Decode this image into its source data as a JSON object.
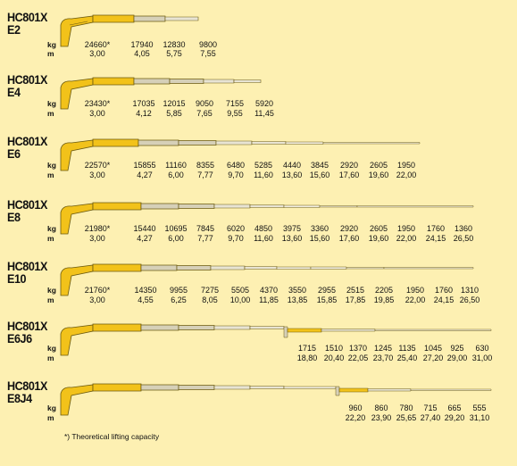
{
  "footnote": "*) Theoretical lifting capacity",
  "unit_kg": "kg",
  "unit_m": "m",
  "colors": {
    "boom": "#f2c21a",
    "boom_stroke": "#6b5a10",
    "extension": "#c9c4b0",
    "background": "#fdf0b2"
  },
  "configs": [
    {
      "line1": "HC801X",
      "line2": "E2",
      "kg": [
        "24660*",
        "17940",
        "12830",
        "9800"
      ],
      "m": [
        "3,00",
        "4,05",
        "5,75",
        "7,55"
      ]
    },
    {
      "line1": "HC801X",
      "line2": "E4",
      "kg": [
        "23430*",
        "17035",
        "12015",
        "9050",
        "7155",
        "5920"
      ],
      "m": [
        "3,00",
        "4,12",
        "5,85",
        "7,65",
        "9,55",
        "11,45"
      ]
    },
    {
      "line1": "HC801X",
      "line2": "E6",
      "kg": [
        "22570*",
        "15855",
        "11160",
        "8355",
        "6480",
        "5285",
        "4440",
        "3845",
        "2920",
        "2605",
        "1950"
      ],
      "m": [
        "3,00",
        "4,27",
        "6,00",
        "7,77",
        "9,70",
        "11,60",
        "13,60",
        "15,60",
        "17,60",
        "19,60",
        "22,00"
      ]
    },
    {
      "line1": "HC801X",
      "line2": "E8",
      "kg": [
        "21980*",
        "15440",
        "10695",
        "7845",
        "6020",
        "4850",
        "3975",
        "3360",
        "2920",
        "2605",
        "1950",
        "1760",
        "1360"
      ],
      "m": [
        "3,00",
        "4,27",
        "6,00",
        "7,77",
        "9,70",
        "11,60",
        "13,60",
        "15,60",
        "17,60",
        "19,60",
        "22,00",
        "24,15",
        "26,50"
      ]
    },
    {
      "line1": "HC801X",
      "line2": "E10",
      "kg": [
        "21760*",
        "14350",
        "9955",
        "7275",
        "5505",
        "4370",
        "3550",
        "2955",
        "2515",
        "2205",
        "1950",
        "1760",
        "1310"
      ],
      "m": [
        "3,00",
        "4,55",
        "6,25",
        "8,05",
        "10,00",
        "11,85",
        "13,85",
        "15,85",
        "17,85",
        "19,85",
        "22,00",
        "24,15",
        "26,50"
      ]
    },
    {
      "line1": "HC801X",
      "line2": "E6J6",
      "kg": [
        "1715",
        "1510",
        "1370",
        "1245",
        "1135",
        "1045",
        "925",
        "630"
      ],
      "m": [
        "18,80",
        "20,40",
        "22,05",
        "23,70",
        "25,40",
        "27,20",
        "29,00",
        "31,00"
      ]
    },
    {
      "line1": "HC801X",
      "line2": "E8J4",
      "kg": [
        "960",
        "860",
        "780",
        "715",
        "665",
        "555"
      ],
      "m": [
        "22,20",
        "23,90",
        "25,65",
        "27,40",
        "29,20",
        "31,10"
      ]
    }
  ]
}
